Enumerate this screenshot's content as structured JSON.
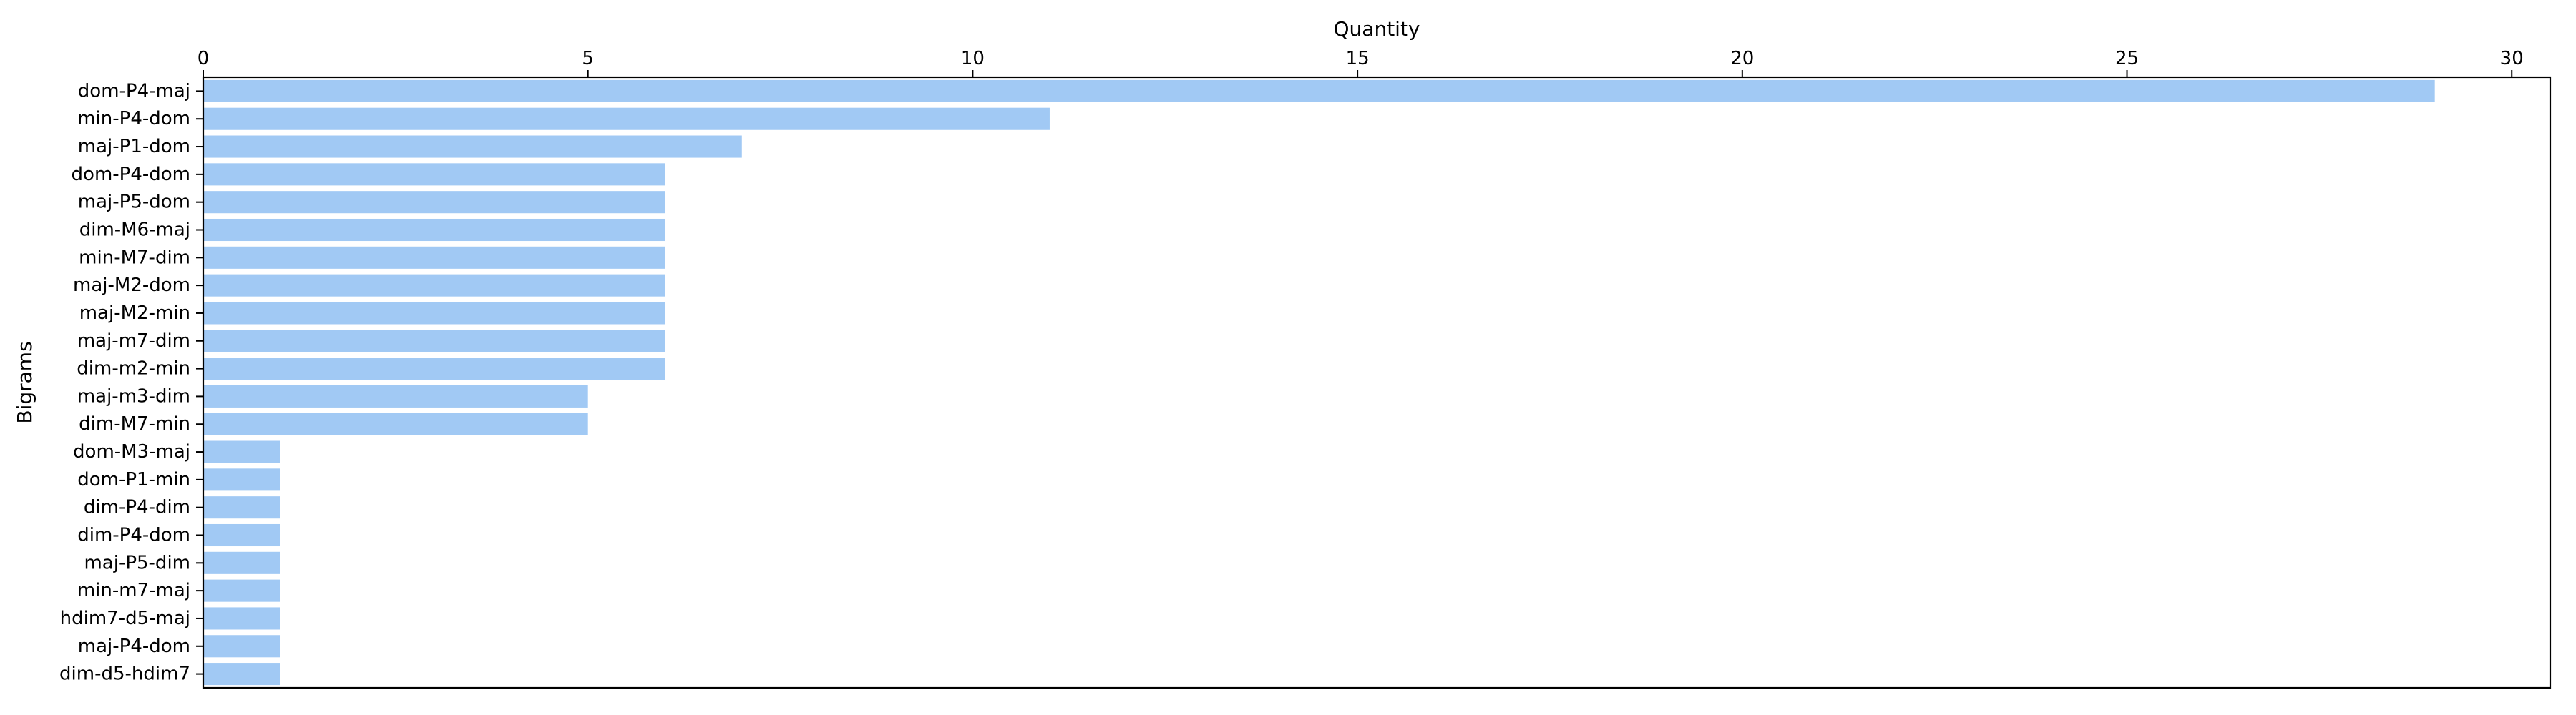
{
  "chart_data": {
    "type": "bar",
    "orientation": "horizontal",
    "title": "",
    "xlabel": "Quantity",
    "ylabel": "Bigrams",
    "x_axis_position": "top",
    "xlim": [
      0,
      30.5
    ],
    "xticks": [
      0,
      5,
      10,
      15,
      20,
      25,
      30
    ],
    "grid": false,
    "legend": "none",
    "bar_color": "#a1c9f4",
    "categories": [
      "dom-P4-maj",
      "min-P4-dom",
      "maj-P1-dom",
      "dom-P4-dom",
      "maj-P5-dom",
      "dim-M6-maj",
      "min-M7-dim",
      "maj-M2-dom",
      "maj-M2-min",
      "maj-m7-dim",
      "dim-m2-min",
      "maj-m3-dim",
      "dim-M7-min",
      "dom-M3-maj",
      "dom-P1-min",
      "dim-P4-dim",
      "dim-P4-dom",
      "maj-P5-dim",
      "min-m7-maj",
      "hdim7-d5-maj",
      "maj-P4-dom",
      "dim-d5-hdim7"
    ],
    "values": [
      29,
      11,
      7,
      6,
      6,
      6,
      6,
      6,
      6,
      6,
      6,
      5,
      5,
      1,
      1,
      1,
      1,
      1,
      1,
      1,
      1,
      1
    ]
  }
}
